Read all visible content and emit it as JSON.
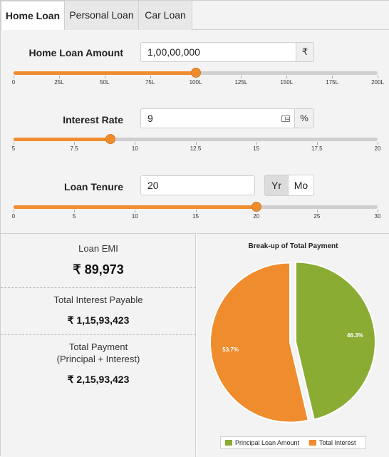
{
  "tabs": [
    {
      "label": "Home Loan",
      "active": true
    },
    {
      "label": "Personal Loan",
      "active": false
    },
    {
      "label": "Car Loan",
      "active": false
    }
  ],
  "colors": {
    "accent": "#ef8d2e",
    "principal": "#8aac33",
    "interest": "#ef8d2e"
  },
  "amount": {
    "label": "Home Loan Amount",
    "value": "1,00,00,000",
    "unit": "₹",
    "slider_min": 0,
    "slider_max": 200,
    "slider_value": 100,
    "ticks": [
      "0",
      "25L",
      "50L",
      "75L",
      "100L",
      "125L",
      "150L",
      "175L",
      "200L"
    ]
  },
  "rate": {
    "label": "Interest Rate",
    "value": "9",
    "unit": "%",
    "icon": "calculator-icon",
    "slider_min": 5,
    "slider_max": 20,
    "slider_value": 9,
    "ticks": [
      "5",
      "7.5",
      "10",
      "12.5",
      "15",
      "17.5",
      "20"
    ]
  },
  "tenure": {
    "label": "Loan Tenure",
    "value": "20",
    "unit_year": "Yr",
    "unit_month": "Mo",
    "selected_unit": "Yr",
    "slider_min": 0,
    "slider_max": 30,
    "slider_value": 20,
    "ticks": [
      "0",
      "5",
      "10",
      "15",
      "20",
      "25",
      "30"
    ]
  },
  "results": {
    "emi_label": "Loan EMI",
    "emi_value": "₹ 89,973",
    "interest_label": "Total Interest Payable",
    "interest_value": "₹ 1,15,93,423",
    "payment_label": "Total Payment",
    "payment_sublabel": "(Principal + Interest)",
    "payment_value": "₹ 2,15,93,423"
  },
  "chart_data": {
    "type": "pie",
    "title": "Break-up of Total Payment",
    "slices": [
      {
        "name": "Principal Loan Amount",
        "value": 46.3,
        "label": "46.3%",
        "color": "#8aac33"
      },
      {
        "name": "Total Interest",
        "value": 53.7,
        "label": "53.7%",
        "color": "#ef8d2e"
      }
    ],
    "legend_placement": "bottom"
  }
}
